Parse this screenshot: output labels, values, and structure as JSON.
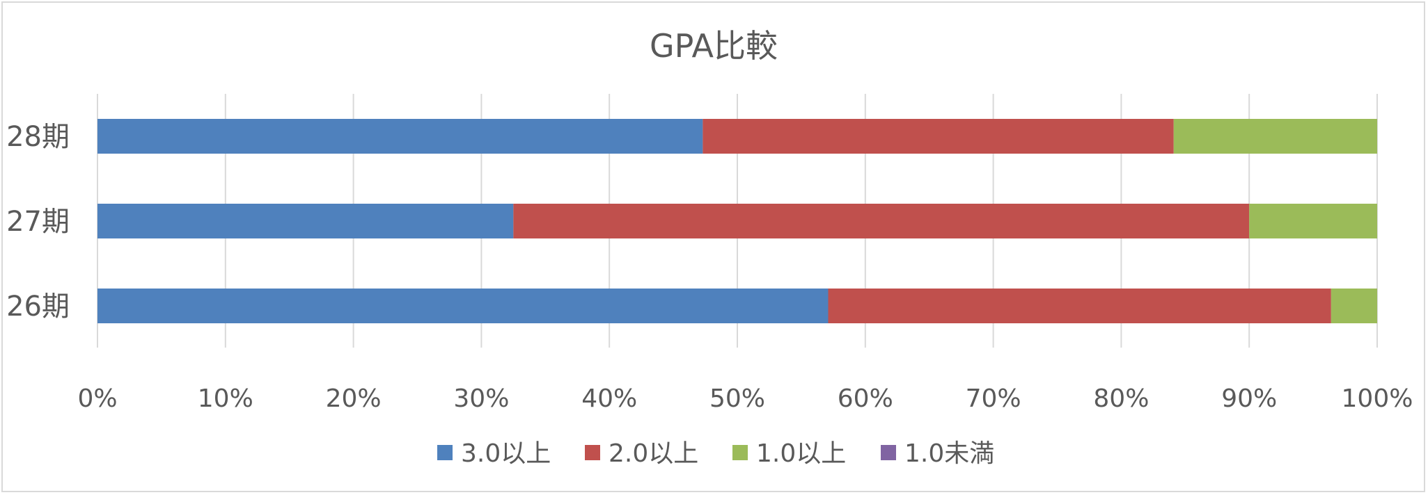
{
  "chart_data": {
    "type": "bar",
    "orientation": "horizontal",
    "stacked": "percent",
    "title": "GPA比較",
    "categories": [
      "28期",
      "27期",
      "26期"
    ],
    "series": [
      {
        "name": "3.0以上",
        "color": "#4F81BD",
        "values": [
          47.3,
          32.5,
          57.1
        ]
      },
      {
        "name": "2.0以上",
        "color": "#C0504D",
        "values": [
          36.8,
          57.5,
          39.3
        ]
      },
      {
        "name": "1.0以上",
        "color": "#9BBB59",
        "values": [
          15.9,
          10.0,
          3.6
        ]
      },
      {
        "name": "1.0未満",
        "color": "#8064A2",
        "values": [
          0,
          0,
          0
        ]
      }
    ],
    "x_ticks": [
      "0%",
      "10%",
      "20%",
      "30%",
      "40%",
      "50%",
      "60%",
      "70%",
      "80%",
      "90%",
      "100%"
    ],
    "xlim": [
      0,
      100
    ],
    "grid": "vertical",
    "legend": "bottom"
  }
}
